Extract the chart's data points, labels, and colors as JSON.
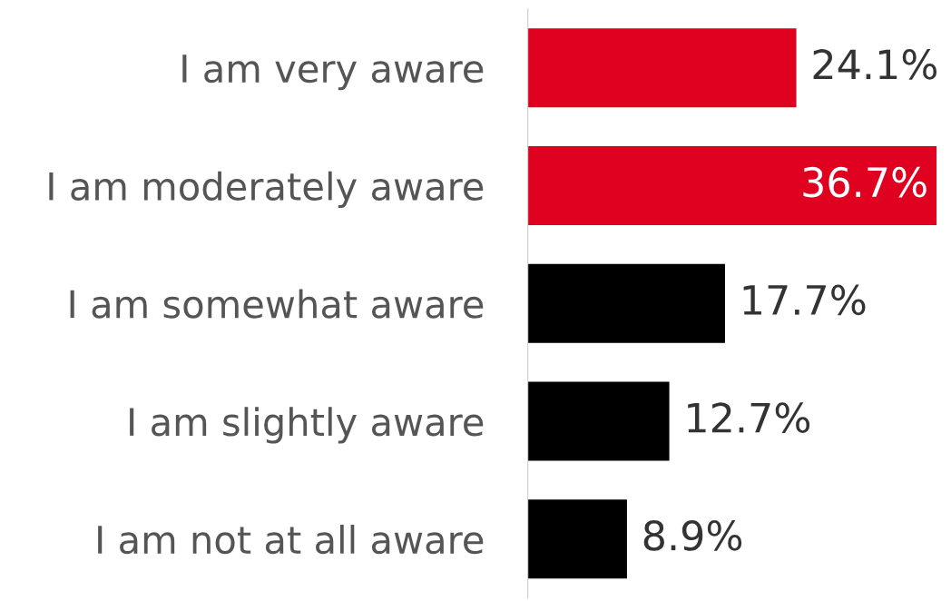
{
  "chart_data": {
    "type": "bar",
    "orientation": "horizontal",
    "categories": [
      "I am very aware",
      "I am moderately aware",
      "I am somewhat aware",
      "I am slightly aware",
      "I am not at all aware"
    ],
    "values": [
      24.1,
      36.7,
      17.7,
      12.7,
      8.9
    ],
    "value_labels": [
      "24.1%",
      "36.7%",
      "17.7%",
      "12.7%",
      "8.9%"
    ],
    "colors": [
      "#e00020",
      "#e00020",
      "#000000",
      "#000000",
      "#000000"
    ],
    "grid": false,
    "legend": false
  }
}
